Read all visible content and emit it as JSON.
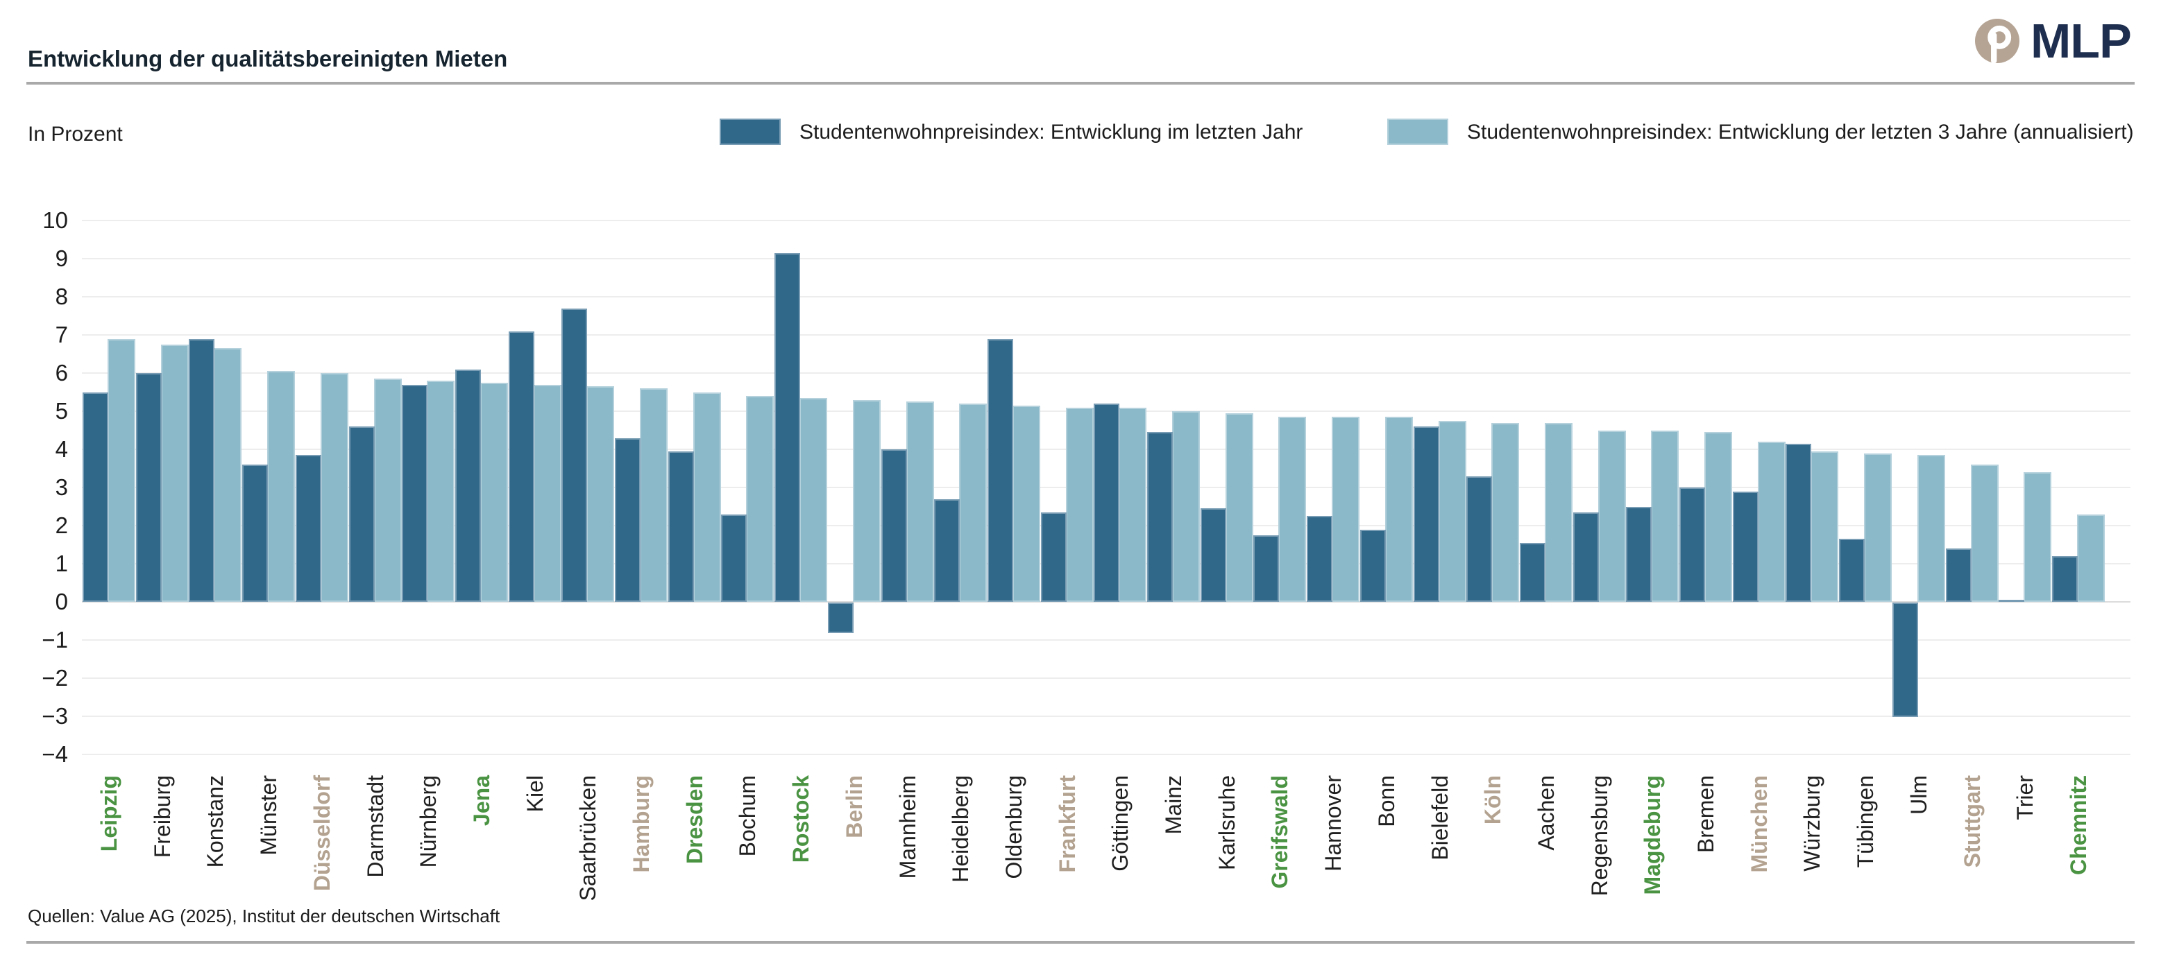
{
  "header": {
    "title": "Entwicklung der qualitätsbereinigten Mieten",
    "brand_wordmark": "MLP"
  },
  "unit_label": "In Prozent",
  "legend": [
    {
      "label": "Studentenwohnpreisindex: Entwicklung im letzten Jahr",
      "color": "#30688a"
    },
    {
      "label": "Studentenwohnpreisindex: Entwicklung der letzten 3 Jahre (annualisiert)",
      "color": "#8cb9c9"
    }
  ],
  "source_note": "Quellen: Value AG (2025), Institut der deutschen Wirtschaft",
  "brand_colors": {
    "circle": "#b5a494",
    "wordmark": "#1d2e4e"
  },
  "label_colors": {
    "east": "#4a9342",
    "top7": "#b3a28f",
    "default": "#1f1f1f"
  },
  "chart_data": {
    "type": "bar",
    "title": "Entwicklung der qualitätsbereinigten Mieten",
    "ylabel": "In Prozent",
    "xlabel": "",
    "ylim": [
      -4,
      10
    ],
    "yticks": [
      10,
      9,
      8,
      7,
      6,
      5,
      4,
      3,
      2,
      1,
      0,
      -1,
      -2,
      -3,
      -4
    ],
    "grid": true,
    "legend_position": "top",
    "categories": [
      "Leipzig",
      "Freiburg",
      "Konstanz",
      "Münster",
      "Düsseldorf",
      "Darmstadt",
      "Nürnberg",
      "Jena",
      "Kiel",
      "Saarbrücken",
      "Hamburg",
      "Dresden",
      "Bochum",
      "Rostock",
      "Berlin",
      "Mannheim",
      "Heidelberg",
      "Oldenburg",
      "Frankfurt",
      "Göttingen",
      "Mainz",
      "Karlsruhe",
      "Greifswald",
      "Hannover",
      "Bonn",
      "Bielefeld",
      "Köln",
      "Aachen",
      "Regensburg",
      "Magdeburg",
      "Bremen",
      "München",
      "Würzburg",
      "Tübingen",
      "Ulm",
      "Stuttgart",
      "Trier",
      "Chemnitz"
    ],
    "category_groups": [
      "east",
      "default",
      "default",
      "default",
      "top7",
      "default",
      "default",
      "east",
      "default",
      "default",
      "top7",
      "east",
      "default",
      "east",
      "top7",
      "default",
      "default",
      "default",
      "top7",
      "default",
      "default",
      "default",
      "east",
      "default",
      "default",
      "default",
      "top7",
      "default",
      "default",
      "east",
      "default",
      "top7",
      "default",
      "default",
      "default",
      "top7",
      "default",
      "east"
    ],
    "series": [
      {
        "name": "Studentenwohnpreisindex: Entwicklung im letzten Jahr",
        "color": "#30688a",
        "values": [
          5.5,
          6.0,
          6.9,
          3.6,
          3.85,
          4.6,
          5.7,
          6.1,
          7.1,
          7.7,
          4.3,
          3.95,
          2.3,
          9.15,
          -0.8,
          4.0,
          2.7,
          6.9,
          2.35,
          5.2,
          4.45,
          2.45,
          1.75,
          2.25,
          1.9,
          4.6,
          3.3,
          1.55,
          2.35,
          2.5,
          3.0,
          2.9,
          4.15,
          1.65,
          -3.0,
          1.4,
          0.05,
          1.2
        ]
      },
      {
        "name": "Studentenwohnpreisindex: Entwicklung der letzten 3 Jahre (annualisiert)",
        "color": "#8cb9c9",
        "values": [
          6.9,
          6.75,
          6.65,
          6.05,
          6.0,
          5.85,
          5.8,
          5.75,
          5.7,
          5.65,
          5.6,
          5.5,
          5.4,
          5.35,
          5.3,
          5.25,
          5.2,
          5.15,
          5.1,
          5.1,
          5.0,
          4.95,
          4.85,
          4.85,
          4.85,
          4.75,
          4.7,
          4.7,
          4.5,
          4.5,
          4.45,
          4.2,
          3.95,
          3.9,
          3.85,
          3.6,
          3.4,
          2.3
        ]
      }
    ]
  }
}
